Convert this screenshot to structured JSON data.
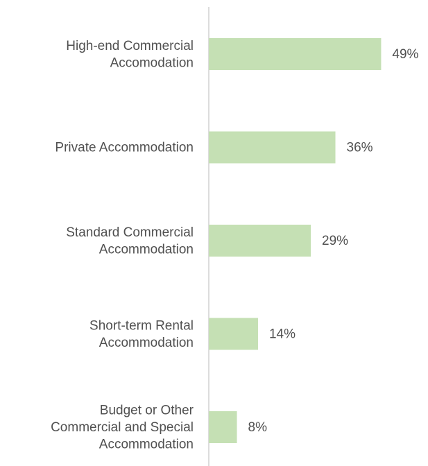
{
  "chart_data": {
    "type": "hbar",
    "categories": [
      [
        "High-end Commercial",
        "Accomodation"
      ],
      [
        "Private Accommodation"
      ],
      [
        "Standard Commercial",
        "Accommodation"
      ],
      [
        "Short-term Rental",
        "Accommodation"
      ],
      [
        "Budget or Other",
        "Commercial and Special",
        "Accommodation"
      ]
    ],
    "values": [
      49,
      36,
      29,
      14,
      8
    ],
    "value_labels": [
      "49%",
      "36%",
      "29%",
      "14%",
      "8%"
    ],
    "color": "#c5e0b4"
  }
}
